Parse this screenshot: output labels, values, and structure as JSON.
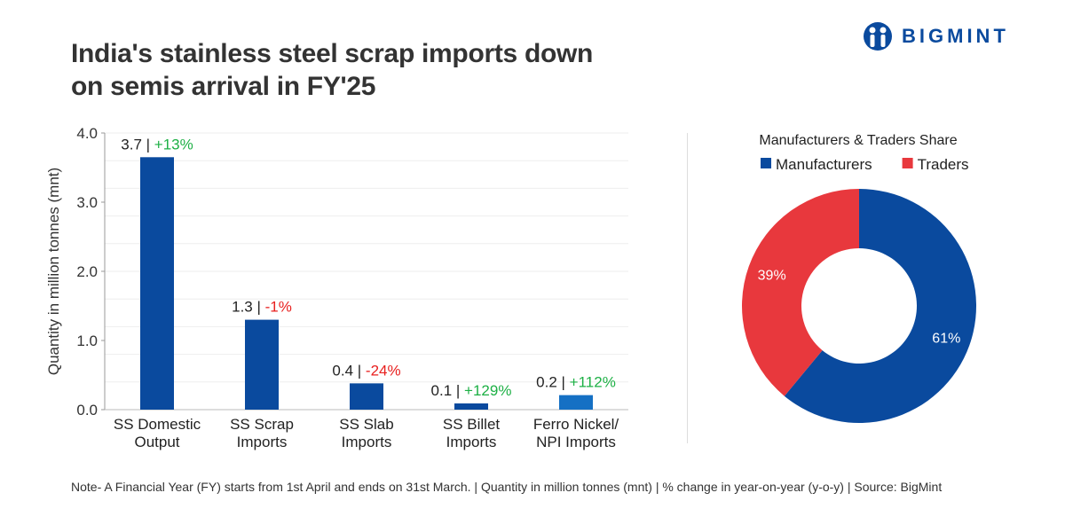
{
  "title_line1": "India's stainless steel scrap imports down",
  "title_line2": "on semis arrival in FY'25",
  "logo": {
    "text": "BIGMINT",
    "color": "#0a4a9e"
  },
  "note": "Note- A Financial Year (FY) starts from 1st April and ends on 31st March. | Quantity in million tonnes (mnt) | % change in year-on-year (y-o-y) | Source: BigMint",
  "chart_data": [
    {
      "type": "bar",
      "categories": [
        [
          "SS Domestic",
          "Output"
        ],
        [
          "SS Scrap",
          "Imports"
        ],
        [
          "SS Slab",
          "Imports"
        ],
        [
          "SS Billet",
          "Imports"
        ],
        [
          "Ferro Nickel/",
          "NPI Imports"
        ]
      ],
      "values": [
        3.65,
        1.3,
        0.38,
        0.09,
        0.21
      ],
      "value_labels": [
        "3.7",
        "1.3",
        "0.4",
        "0.1",
        "0.2"
      ],
      "change_labels": [
        "+13%",
        "-1%",
        "-24%",
        "+129%",
        "+112%"
      ],
      "ylabel": "Quantity in million tonnes (mnt)",
      "ylim": [
        0,
        4.0
      ],
      "yticks": [
        "0.0",
        "1.0",
        "2.0",
        "3.0",
        "4.0"
      ],
      "grid": true,
      "colors": {
        "bar": "#0a4a9e",
        "last_bar": "#1570c4",
        "positive": "#1db045",
        "negative": "#e8201f"
      }
    },
    {
      "type": "pie",
      "title": "Manufacturers & Traders Share",
      "legend_position": "top",
      "donut": true,
      "slices": [
        {
          "name": "Manufacturers",
          "value": 61,
          "label": "61%",
          "color": "#0a4a9e"
        },
        {
          "name": "Traders",
          "value": 39,
          "label": "39%",
          "color": "#e8383d"
        }
      ]
    }
  ]
}
